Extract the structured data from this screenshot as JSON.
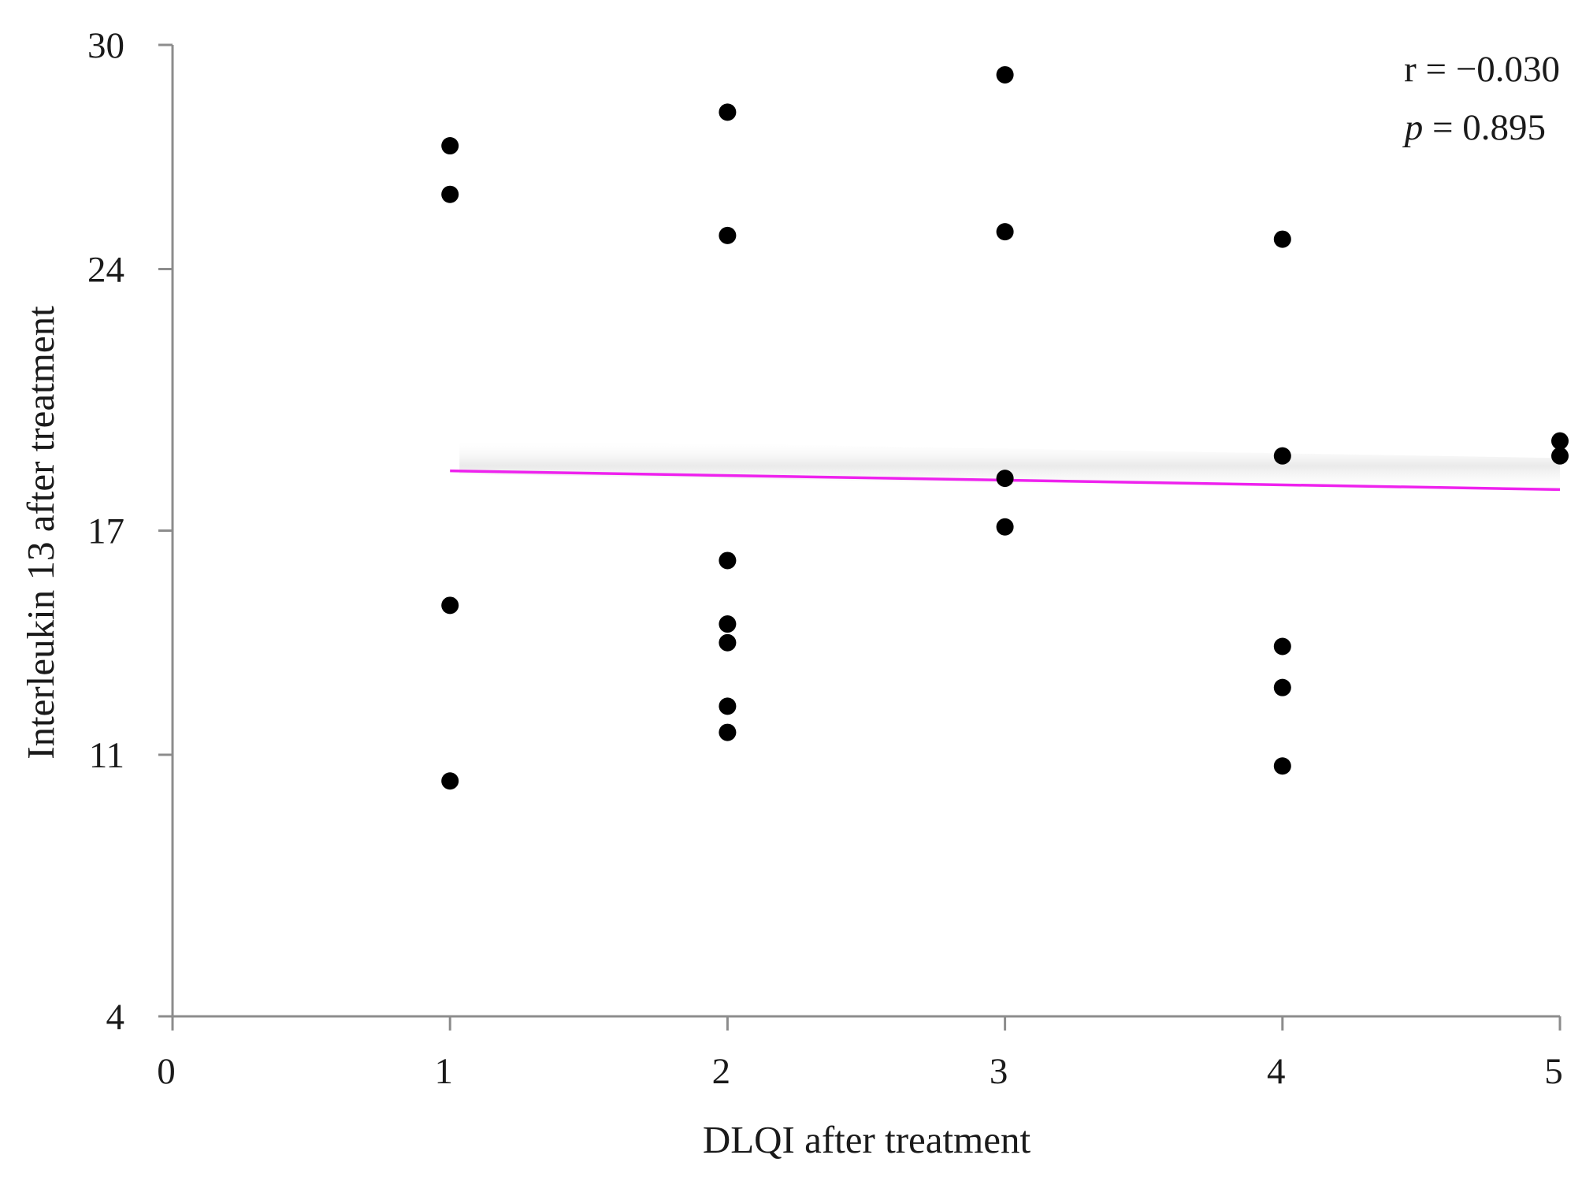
{
  "chart_data": {
    "type": "scatter",
    "title": "",
    "xlabel": "DLQI after treatment",
    "ylabel": "Interleukin 13 after treatment",
    "xlim": [
      0,
      5
    ],
    "ylim": [
      4,
      30
    ],
    "x_ticks": [
      0,
      1,
      2,
      3,
      4,
      5
    ],
    "y_ticks": [
      4,
      11,
      17,
      24,
      30
    ],
    "grid": false,
    "colors": {
      "points": "#000000",
      "trendline": "#ee22ee",
      "axis": "#8c8c8c"
    },
    "points": [
      {
        "x": 1,
        "y": 27.3
      },
      {
        "x": 1,
        "y": 26.0
      },
      {
        "x": 1,
        "y": 15.0
      },
      {
        "x": 1,
        "y": 10.3
      },
      {
        "x": 2,
        "y": 28.2
      },
      {
        "x": 2,
        "y": 24.9
      },
      {
        "x": 2,
        "y": 16.2
      },
      {
        "x": 2,
        "y": 14.5
      },
      {
        "x": 2,
        "y": 14.0
      },
      {
        "x": 2,
        "y": 12.3
      },
      {
        "x": 2,
        "y": 11.6
      },
      {
        "x": 3,
        "y": 29.2
      },
      {
        "x": 3,
        "y": 25.0
      },
      {
        "x": 3,
        "y": 18.4
      },
      {
        "x": 3,
        "y": 17.1
      },
      {
        "x": 4,
        "y": 24.8
      },
      {
        "x": 4,
        "y": 19.0
      },
      {
        "x": 4,
        "y": 13.9
      },
      {
        "x": 4,
        "y": 12.8
      },
      {
        "x": 4,
        "y": 10.7
      },
      {
        "x": 5,
        "y": 19.4
      },
      {
        "x": 5,
        "y": 19.0
      }
    ],
    "trendline": {
      "x": [
        1,
        5
      ],
      "y": [
        18.6,
        18.1
      ]
    },
    "annotation": {
      "r_label": "r = −0.030",
      "p_symbol": "p",
      "p_value": " = 0.895"
    }
  }
}
